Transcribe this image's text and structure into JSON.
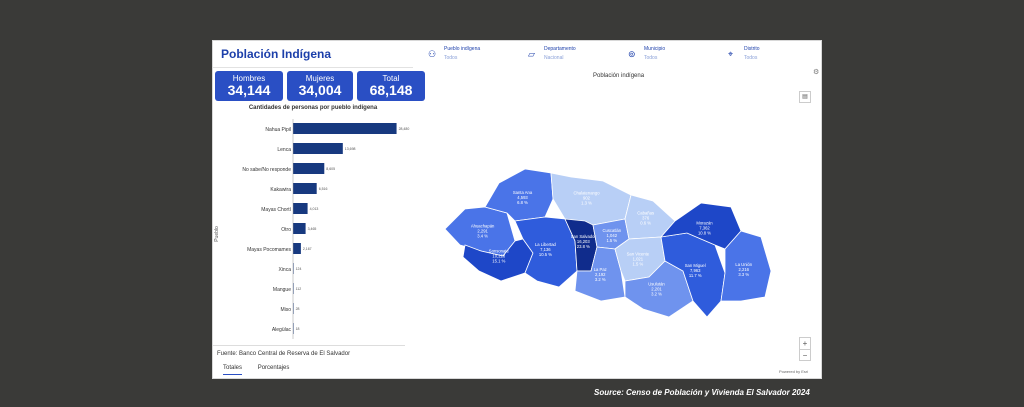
{
  "dashboard": {
    "title": "Población Indígena",
    "kpis": [
      {
        "label": "Hombres",
        "value": "34,144"
      },
      {
        "label": "Mujeres",
        "value": "34,004"
      },
      {
        "label": "Total",
        "value": "68,148"
      }
    ],
    "chart_title": "Cantidades de personas por pueblo indígena",
    "ylabel": "Pueblo",
    "source": "Fuente: Banco Central de Reserva de El Salvador",
    "tabs": [
      "Totales",
      "Porcentajes"
    ]
  },
  "filters": [
    {
      "label": "Pueblo indígena",
      "value": "Todos",
      "icon": "people-icon"
    },
    {
      "label": "Departamento",
      "value": "Nacional",
      "icon": "map-region-icon"
    },
    {
      "label": "Municipio",
      "value": "Todos",
      "icon": "map-pin-icon"
    },
    {
      "label": "Distrito",
      "value": "Todos",
      "icon": "location-icon"
    }
  ],
  "map": {
    "title": "Población indígena",
    "zoom_in": "+",
    "zoom_out": "−",
    "powered": "Powered by Esri",
    "departments": [
      {
        "name": "Santa Ana",
        "value": "4,593",
        "pct": "6.8 %"
      },
      {
        "name": "Chalatenango",
        "value": "902",
        "pct": "1.3 %"
      },
      {
        "name": "Ahuachapán",
        "value": "2,291",
        "pct": "3.4 %"
      },
      {
        "name": "Cuscatlán",
        "value": "1,042",
        "pct": "1.5 %"
      },
      {
        "name": "Cabañas",
        "value": "376",
        "pct": "0.6 %"
      },
      {
        "name": "Sonsonate",
        "value": "10,228",
        "pct": "15.1 %"
      },
      {
        "name": "San Salvador",
        "value": "16,203",
        "pct": "23.8 %"
      },
      {
        "name": "La Libertad",
        "value": "7,136",
        "pct": "10.5 %"
      },
      {
        "name": "San Vicente",
        "value": "1,021",
        "pct": "1.5 %"
      },
      {
        "name": "Morazán",
        "value": "7,362",
        "pct": "10.8 %"
      },
      {
        "name": "La Paz",
        "value": "2,192",
        "pct": "3.2 %"
      },
      {
        "name": "San Miguel",
        "value": "7,963",
        "pct": "11.7 %"
      },
      {
        "name": "Usulután",
        "value": "2,201",
        "pct": "3.2 %"
      },
      {
        "name": "La Unión",
        "value": "2,216",
        "pct": "3.3 %"
      }
    ]
  },
  "caption": "Source: Censo de Población y Vivienda El Salvador 2024",
  "chart_data": {
    "type": "bar",
    "orientation": "horizontal",
    "title": "Cantidades de personas por pueblo indígena",
    "ylabel": "Pueblo",
    "categories": [
      "Nahua Pipil",
      "Lenca",
      "No sabe/No responde",
      "Kakawira",
      "Mayas Chortí",
      "Otro",
      "Mayas Pocomames",
      "Xinca",
      "Mangue",
      "Miso",
      "Alegülac"
    ],
    "values": [
      28480,
      13698,
      8605,
      6516,
      4013,
      3465,
      2167,
      124,
      112,
      28,
      18
    ],
    "value_labels": [
      "28,480",
      "13,698",
      "8,605",
      "6,516",
      "4,013",
      "3,465",
      "2,167",
      "124",
      "112",
      "28",
      "18"
    ],
    "xlim": [
      0,
      33000
    ],
    "grid": false,
    "color": "#17397f"
  },
  "colors": {
    "accent": "#2a4fc4",
    "bar": "#17397f",
    "page_bg": "#3a3a38"
  }
}
